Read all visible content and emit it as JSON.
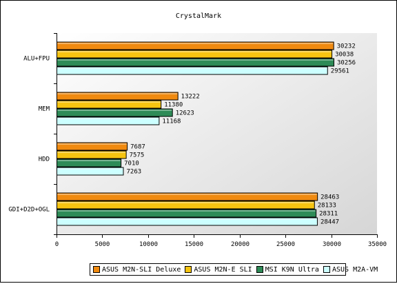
{
  "chart_data": {
    "type": "bar",
    "orientation": "horizontal",
    "title": "CrystalMark",
    "xlabel": "",
    "ylabel": "",
    "categories": [
      "ALU+FPU",
      "MEM",
      "HDD",
      "GDI+D2D+OGL"
    ],
    "series": [
      {
        "name": "ASUS M2N-SLI Deluxe",
        "color": "#F08A10",
        "values": [
          30232,
          13222,
          7687,
          28463
        ]
      },
      {
        "name": "ASUS M2N-E SLI",
        "color": "#F6C411",
        "values": [
          30038,
          11380,
          7575,
          28133
        ]
      },
      {
        "name": "MSI K9N Ultra",
        "color": "#2E8B57",
        "values": [
          30256,
          12623,
          7010,
          28311
        ]
      },
      {
        "name": "ASUS M2A-VM",
        "color": "#CCFFFF",
        "values": [
          29561,
          11168,
          7263,
          28447
        ]
      }
    ],
    "xlim": [
      0,
      35000
    ],
    "xticks": [
      0,
      5000,
      10000,
      15000,
      20000,
      25000,
      30000,
      35000
    ],
    "grid": false,
    "legend_position": "bottom",
    "background_gradient": [
      "#ffffff",
      "#d8d8d8"
    ]
  }
}
